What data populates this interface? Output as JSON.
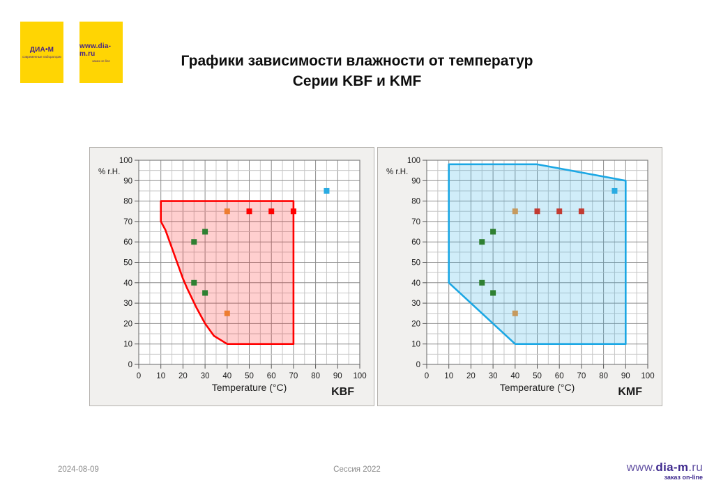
{
  "title": {
    "line1": "Графики зависимости влажности от температур",
    "line2": "Серии KBF и KMF"
  },
  "logos": {
    "bg_color": "#FFD503",
    "text_color": "#4A2683",
    "logo1": {
      "main": "ДИА•М",
      "sub": "современные лаборатории"
    },
    "logo2": {
      "main": "www.dia-m.ru",
      "sub": "заказ on-line"
    }
  },
  "footer": {
    "date": "2024-08-09",
    "center": "Сессия 2022",
    "logo": {
      "www": "www",
      "dot1": ".",
      "mid": "dia-m",
      "dot2": ".",
      "ru": "ru",
      "sub": "заказ on-line",
      "color": "#3F2A8E"
    }
  },
  "chart_data": [
    {
      "type": "scatter",
      "name": "KBF",
      "xlabel": "Temperature (°C)",
      "ylabel": "% r.H.",
      "xlim": [
        0,
        100
      ],
      "ylim": [
        0,
        100
      ],
      "xticks": [
        0,
        10,
        20,
        30,
        40,
        50,
        60,
        70,
        80,
        90,
        100
      ],
      "yticks": [
        0,
        10,
        20,
        30,
        40,
        50,
        60,
        70,
        80,
        90,
        100
      ],
      "grid": {
        "minor_step": 5,
        "major_step": 10,
        "minor_color": "#c7c7c7",
        "major_color": "#8c8c8c"
      },
      "region": {
        "name": "kbf-operating-range",
        "stroke": "#FF0000",
        "fill": "#FF0000",
        "fill_opacity": 0.19,
        "points": [
          [
            10,
            80
          ],
          [
            70,
            80
          ],
          [
            70,
            10
          ],
          [
            40,
            10
          ],
          [
            34,
            14
          ],
          [
            30,
            20
          ],
          [
            26,
            28
          ],
          [
            22,
            37
          ],
          [
            20,
            42
          ],
          [
            17,
            51
          ],
          [
            14,
            60
          ],
          [
            12,
            66
          ],
          [
            10,
            70
          ]
        ]
      },
      "series": [
        {
          "name": "green-points",
          "color": "#2F8032",
          "points": [
            [
              25,
              60
            ],
            [
              30,
              65
            ],
            [
              25,
              40
            ],
            [
              30,
              35
            ]
          ]
        },
        {
          "name": "orange-points",
          "color": "#ED7D31",
          "points": [
            [
              40,
              75
            ],
            [
              40,
              25
            ]
          ]
        },
        {
          "name": "red-points",
          "color": "#FF0000",
          "points": [
            [
              50,
              75
            ],
            [
              60,
              75
            ],
            [
              70,
              75
            ]
          ]
        },
        {
          "name": "blue-point",
          "color": "#29ABE2",
          "points": [
            [
              85,
              85
            ]
          ]
        }
      ]
    },
    {
      "type": "scatter",
      "name": "KMF",
      "xlabel": "Temperature (°C)",
      "ylabel": "% r.H.",
      "xlim": [
        0,
        100
      ],
      "ylim": [
        0,
        100
      ],
      "xticks": [
        0,
        10,
        20,
        30,
        40,
        50,
        60,
        70,
        80,
        90,
        100
      ],
      "yticks": [
        0,
        10,
        20,
        30,
        40,
        50,
        60,
        70,
        80,
        90,
        100
      ],
      "grid": {
        "minor_step": 5,
        "major_step": 10,
        "minor_color": "#c7c7c7",
        "major_color": "#8c8c8c"
      },
      "region": {
        "name": "kmf-operating-range",
        "stroke": "#1BA7E4",
        "fill": "#29ABE2",
        "fill_opacity": 0.22,
        "points": [
          [
            10,
            98
          ],
          [
            50,
            98
          ],
          [
            90,
            90
          ],
          [
            90,
            10
          ],
          [
            40,
            10
          ],
          [
            10,
            40
          ]
        ]
      },
      "series": [
        {
          "name": "green-points",
          "color": "#2F8032",
          "points": [
            [
              25,
              60
            ],
            [
              30,
              65
            ],
            [
              25,
              40
            ],
            [
              30,
              35
            ]
          ]
        },
        {
          "name": "tan-points",
          "color": "#C69A5E",
          "points": [
            [
              40,
              75
            ],
            [
              40,
              25
            ]
          ]
        },
        {
          "name": "dark-red-points",
          "color": "#C23B32",
          "points": [
            [
              50,
              75
            ],
            [
              60,
              75
            ],
            [
              70,
              75
            ]
          ]
        },
        {
          "name": "blue-point",
          "color": "#29ABE2",
          "points": [
            [
              85,
              85
            ]
          ]
        }
      ]
    }
  ]
}
